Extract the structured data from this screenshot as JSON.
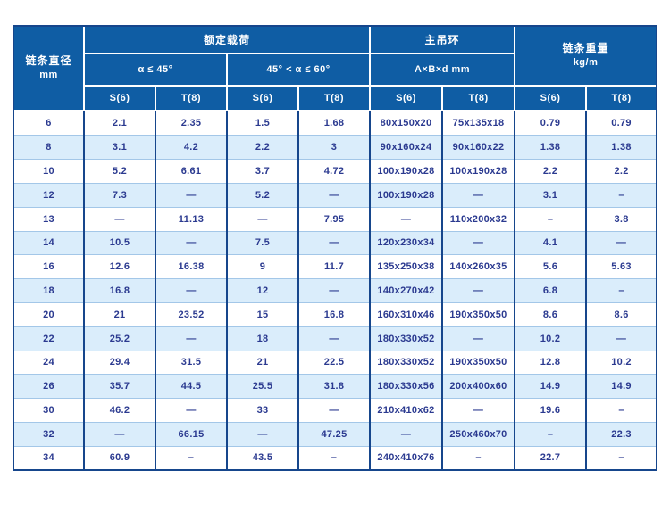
{
  "colors": {
    "header_blue": "#0f5da4",
    "border_dark": "#16468c",
    "row_alt": "#daedfb",
    "row_divider": "#a3c7e8",
    "data_text": "#2b3a90",
    "header_text": "#ffffff"
  },
  "table": {
    "header": {
      "diameter_line1": "链条直径",
      "diameter_line2": "mm",
      "group_load": "额定载荷",
      "group_ring": "主吊环",
      "weight_line1": "链条重量",
      "weight_line2": "kg/m",
      "angle1": "α ≤ 45°",
      "angle2": "45° < α ≤ 60°",
      "ring_dims": "A×B×d  mm",
      "grade_s": "S(6)",
      "grade_t": "T(8)"
    },
    "rows": [
      {
        "d": "6",
        "cells": [
          "2.1",
          "2.35",
          "1.5",
          "1.68",
          "80x150x20",
          "75x135x18",
          "0.79",
          "0.79"
        ]
      },
      {
        "d": "8",
        "cells": [
          "3.1",
          "4.2",
          "2.2",
          "3",
          "90x160x24",
          "90x160x22",
          "1.38",
          "1.38"
        ]
      },
      {
        "d": "10",
        "cells": [
          "5.2",
          "6.61",
          "3.7",
          "4.72",
          "100x190x28",
          "100x190x28",
          "2.2",
          "2.2"
        ]
      },
      {
        "d": "12",
        "cells": [
          "7.3",
          "—",
          "5.2",
          "—",
          "100x190x28",
          "—",
          "3.1",
          "–"
        ]
      },
      {
        "d": "13",
        "cells": [
          "—",
          "11.13",
          "—",
          "7.95",
          "—",
          "110x200x32",
          "–",
          "3.8"
        ]
      },
      {
        "d": "14",
        "cells": [
          "10.5",
          "—",
          "7.5",
          "—",
          "120x230x34",
          "—",
          "4.1",
          "—"
        ]
      },
      {
        "d": "16",
        "cells": [
          "12.6",
          "16.38",
          "9",
          "11.7",
          "135x250x38",
          "140x260x35",
          "5.6",
          "5.63"
        ]
      },
      {
        "d": "18",
        "cells": [
          "16.8",
          "—",
          "12",
          "—",
          "140x270x42",
          "—",
          "6.8",
          "–"
        ]
      },
      {
        "d": "20",
        "cells": [
          "21",
          "23.52",
          "15",
          "16.8",
          "160x310x46",
          "190x350x50",
          "8.6",
          "8.6"
        ]
      },
      {
        "d": "22",
        "cells": [
          "25.2",
          "—",
          "18",
          "—",
          "180x330x52",
          "—",
          "10.2",
          "—"
        ]
      },
      {
        "d": "24",
        "cells": [
          "29.4",
          "31.5",
          "21",
          "22.5",
          "180x330x52",
          "190x350x50",
          "12.8",
          "10.2"
        ]
      },
      {
        "d": "26",
        "cells": [
          "35.7",
          "44.5",
          "25.5",
          "31.8",
          "180x330x56",
          "200x400x60",
          "14.9",
          "14.9"
        ]
      },
      {
        "d": "30",
        "cells": [
          "46.2",
          "—",
          "33",
          "—",
          "210x410x62",
          "—",
          "19.6",
          "–"
        ]
      },
      {
        "d": "32",
        "cells": [
          "—",
          "66.15",
          "—",
          "47.25",
          "—",
          "250x460x70",
          "–",
          "22.3"
        ]
      },
      {
        "d": "34",
        "cells": [
          "60.9",
          "–",
          "43.5",
          "–",
          "240x410x76",
          "–",
          "22.7",
          "–"
        ]
      }
    ]
  }
}
